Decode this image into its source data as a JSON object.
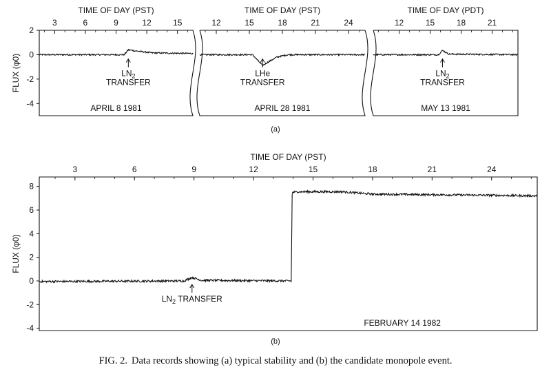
{
  "caption": {
    "figure_id": "FIG. 2.",
    "text": "Data records showing (a) typical stability and (b) the candidate monopole event."
  },
  "panel_labels": {
    "a": "(a)",
    "b": "(b)"
  },
  "chart_data": [
    {
      "type": "line",
      "panel": "a",
      "xlabel": "TIME OF DAY (PST)",
      "ylabel": "FLUX (φ0)",
      "xticks": [
        3,
        6,
        9,
        12,
        15
      ],
      "xlim": [
        1.5,
        16.5
      ],
      "yticks": [
        2,
        0,
        -2,
        -4
      ],
      "ylim": [
        -5,
        2
      ],
      "annotation": {
        "lines": [
          "LN2",
          "TRANSFER"
        ],
        "x": 10.2
      },
      "date_label": "APRIL 8 1981",
      "series": [
        {
          "x": [
            1.5,
            9.8,
            10.2,
            11.0,
            12.5,
            16.5
          ],
          "y": [
            0,
            0,
            0.4,
            0.3,
            0.15,
            0.1
          ]
        }
      ]
    },
    {
      "type": "line",
      "panel": "a",
      "xlabel": "TIME OF DAY (PST)",
      "ylabel": "",
      "xticks": [
        12,
        15,
        18,
        21,
        24
      ],
      "xlim": [
        10.5,
        25.5
      ],
      "annotation": {
        "lines": [
          "LHe",
          "TRANSFER"
        ],
        "x": 16.2
      },
      "date_label": "APRIL 28 1981",
      "series": [
        {
          "x": [
            10.5,
            15.3,
            15.8,
            16.2,
            16.7,
            17.5,
            18.5,
            25.5
          ],
          "y": [
            0,
            0,
            -0.5,
            -0.9,
            -0.6,
            -0.2,
            0,
            0
          ]
        }
      ]
    },
    {
      "type": "line",
      "panel": "a",
      "xlabel": "TIME OF DAY (PDT)",
      "ylabel": "",
      "xticks": [
        12,
        15,
        18,
        21
      ],
      "xlim": [
        9.5,
        23.5
      ],
      "annotation": {
        "lines": [
          "LN2",
          "TRANSFER"
        ],
        "x": 16.2
      },
      "date_label": "MAY 13 1981",
      "series": [
        {
          "x": [
            9.5,
            15.8,
            16.2,
            16.8,
            23.5
          ],
          "y": [
            0,
            0,
            0.35,
            0.05,
            0
          ]
        }
      ]
    },
    {
      "type": "line",
      "panel": "b",
      "xlabel": "TIME OF DAY (PST)",
      "ylabel": "FLUX (φ0)",
      "xticks": [
        3,
        6,
        9,
        12,
        15,
        18,
        21,
        24
      ],
      "xlim": [
        1.2,
        26.3
      ],
      "yticks": [
        8,
        6,
        4,
        2,
        0,
        -2,
        -4
      ],
      "ylim": [
        -4.2,
        8.8
      ],
      "annotation": {
        "lines": [
          "LN2 TRANSFER"
        ],
        "x": 8.9
      },
      "date_label": "FEBRUARY 14 1982",
      "series": [
        {
          "x": [
            1.2,
            8.5,
            8.9,
            9.4,
            13.9,
            13.95,
            14.2,
            16.5,
            18,
            21,
            24,
            26.3
          ],
          "y": [
            -0.05,
            0,
            0.3,
            0.05,
            0,
            7.5,
            7.55,
            7.55,
            7.35,
            7.3,
            7.25,
            7.2
          ]
        }
      ]
    }
  ]
}
